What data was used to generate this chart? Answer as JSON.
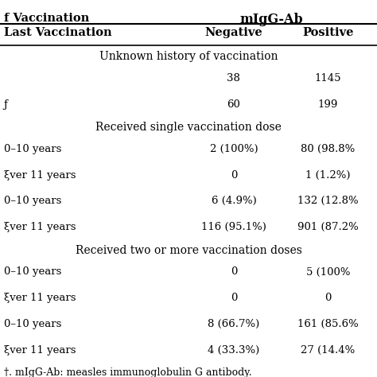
{
  "col_headers": [
    "Last Vaccination",
    "Negative",
    "Positive"
  ],
  "top_header_left": "f Vaccination",
  "top_header_right": "mIgG-Ab",
  "section1_title": "Unknown history of vaccination",
  "section2_title": "Received single vaccination dose",
  "section3_title": "Received two or more vaccination doses",
  "footnote": "†. mIgG-Ab: measles immunoglobulin G antibody.",
  "rows": [
    {
      "label": "",
      "neg": "38",
      "pos": "1145"
    },
    {
      "label": "ƒ",
      "neg": "60",
      "pos": "199"
    },
    {
      "label": "0–10 years",
      "neg": "2 (100%)",
      "pos": "80 (98.8%"
    },
    {
      "label": "ξver 11 years",
      "neg": "0",
      "pos": "1 (1.2%)"
    },
    {
      "label": "0–10 years",
      "neg": "6 (4.9%)",
      "pos": "132 (12.8%"
    },
    {
      "label": "ξver 11 years",
      "neg": "116 (95.1%)",
      "pos": "901 (87.2%"
    },
    {
      "label": "0–10 years",
      "neg": "0",
      "pos": "5 (100%"
    },
    {
      "label": "ξver 11 years",
      "neg": "0",
      "pos": "0"
    },
    {
      "label": "0–10 years",
      "neg": "8 (66.7%)",
      "pos": "161 (85.6%"
    },
    {
      "label": "ξver 11 years",
      "neg": "4 (33.3%)",
      "pos": "27 (14.4%"
    }
  ],
  "bg_color": "#ffffff",
  "header_bg": "#ffffff",
  "line_color": "#000000",
  "font_size": 9.5,
  "header_font_size": 10.5
}
